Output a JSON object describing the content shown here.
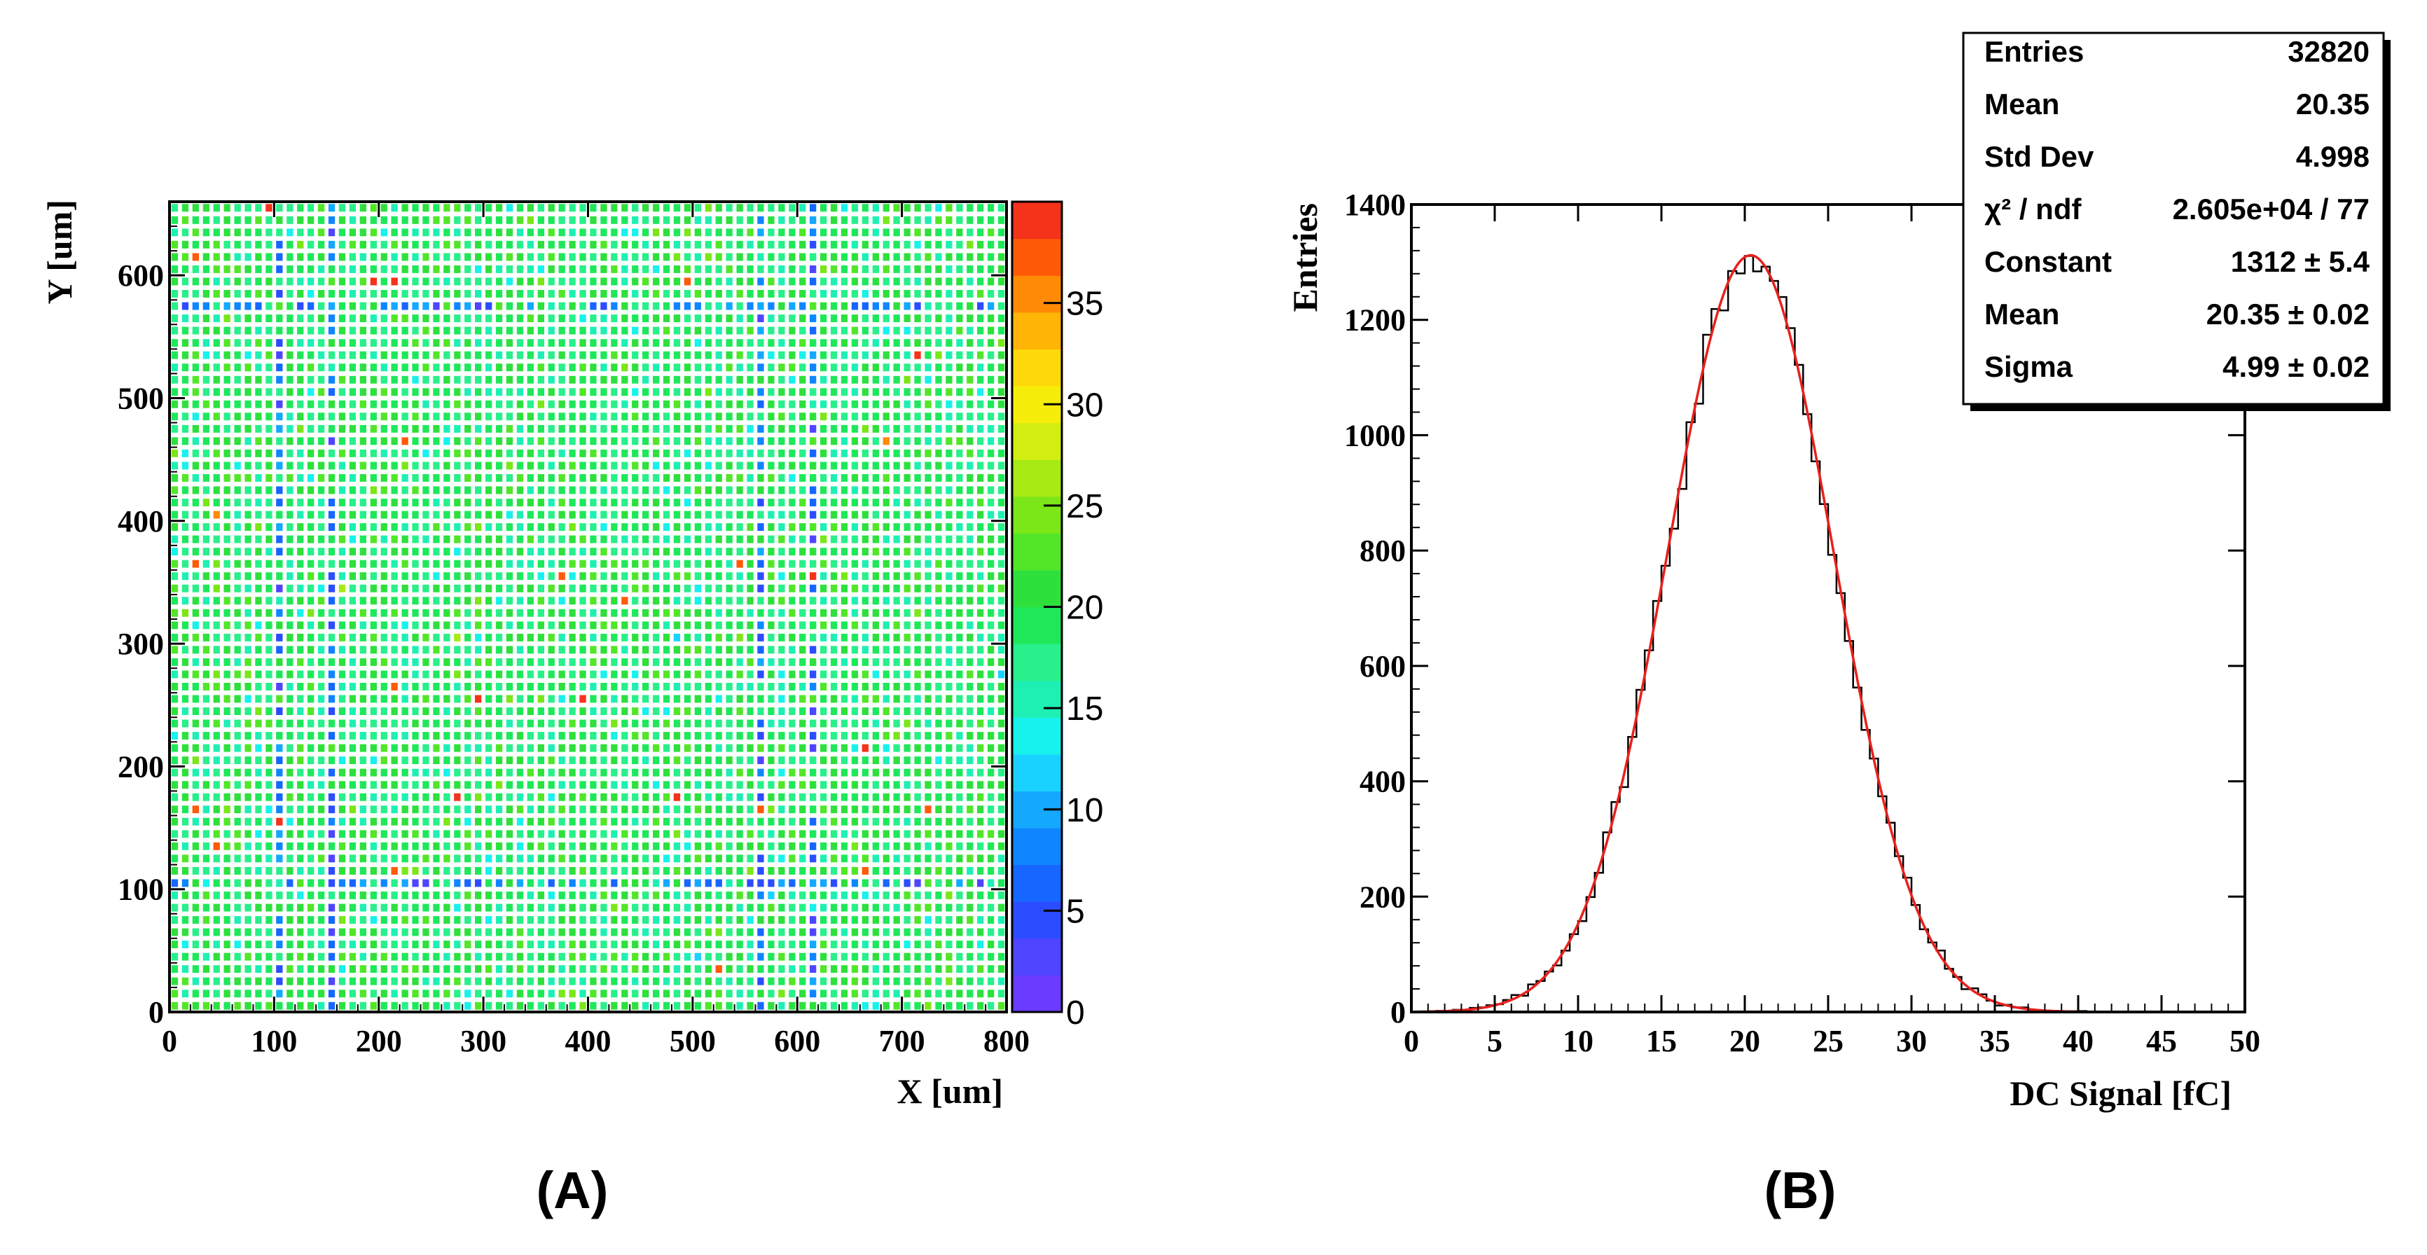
{
  "colors": {
    "fit_line": "#e8201c",
    "hist_line": "#000000"
  },
  "panels": {
    "a_label": "(A)",
    "b_label": "(B)"
  },
  "chart_data": [
    {
      "type": "heatmap",
      "xlabel": "X [um]",
      "ylabel": "Y [um]",
      "xlim": [
        0,
        800
      ],
      "ylim": [
        0,
        660
      ],
      "x_ticks": [
        "0",
        "100",
        "200",
        "300",
        "400",
        "500",
        "600",
        "700",
        "800"
      ],
      "y_ticks": [
        "0",
        "100",
        "200",
        "300",
        "400",
        "500",
        "600"
      ],
      "grid": {
        "nx": 80,
        "ny": 66,
        "pixel_pitch_um": 10,
        "cells": "approximately uniform 15-25 with low-value (blue) columns near X=100, 150, 560, 610 and rows near Y=100, 570; sporadic high (red) pixels"
      },
      "colorbar": {
        "range": [
          0,
          40
        ],
        "ticks": [
          "0",
          "5",
          "10",
          "15",
          "20",
          "25",
          "30",
          "35"
        ],
        "palette": [
          "#6a3cff",
          "#4f45ff",
          "#2c4dff",
          "#1766ff",
          "#0f86ff",
          "#14a8ff",
          "#19d2ff",
          "#17f2ec",
          "#1ef0b4",
          "#28f08a",
          "#1ee85a",
          "#2ee03c",
          "#52e628",
          "#7be618",
          "#a8ea14",
          "#d2ee12",
          "#f6ee0a",
          "#ffd80a",
          "#ffb406",
          "#ff8a06",
          "#ff5a08",
          "#f5321a"
        ]
      }
    },
    {
      "type": "histogram",
      "xlabel": "DC Signal  [fC]",
      "ylabel": "Entries",
      "xlim": [
        0,
        50
      ],
      "ylim": [
        0,
        1400
      ],
      "x_ticks": [
        "0",
        "5",
        "10",
        "15",
        "20",
        "25",
        "30",
        "35",
        "40",
        "45",
        "50"
      ],
      "y_ticks": [
        "0",
        "200",
        "400",
        "600",
        "800",
        "1000",
        "1200",
        "1400"
      ],
      "bins": {
        "width": 0.5,
        "x_start": 0
      },
      "stats": [
        {
          "label": "Entries",
          "value": "32820"
        },
        {
          "label": "Mean",
          "value": "20.35"
        },
        {
          "label": "Std Dev",
          "value": "4.998"
        },
        {
          "label": "χ² / ndf",
          "value": "2.605e+04 / 77"
        },
        {
          "label": "Constant",
          "value": "1312 ± 5.4"
        },
        {
          "label": "Mean",
          "value": "20.35 ± 0.02"
        },
        {
          "label": "Sigma",
          "value": "4.99 ± 0.02"
        }
      ],
      "fit": {
        "function": "gaus",
        "constant": 1312,
        "mean": 20.35,
        "sigma": 4.99
      }
    }
  ]
}
